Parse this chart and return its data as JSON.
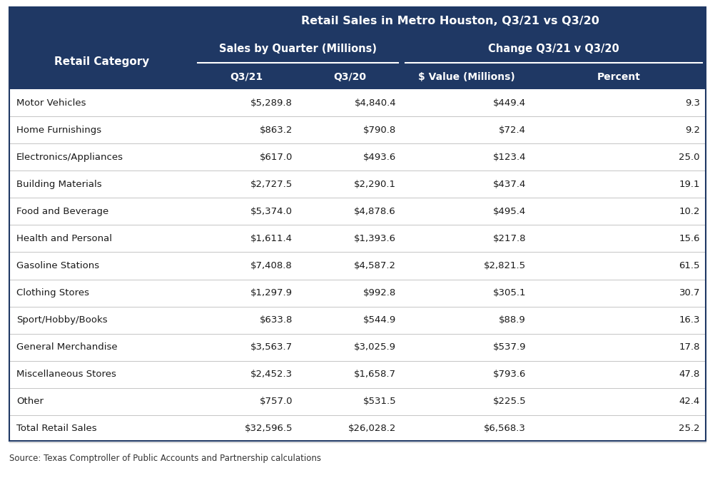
{
  "title": "Retail Sales in Metro Houston, Q3/21 vs Q3/20",
  "header_bg_color": "#1F3864",
  "header_text_color": "#FFFFFF",
  "row_text_color": "#1a1a1a",
  "source_text": "Source: Texas Comptroller of Public Accounts and Partnership calculations",
  "table_bg_color": "#FFFFFF",
  "col_headers": [
    "Q3/21",
    "Q3/20",
    "$ Value (Millions)",
    "Percent"
  ],
  "group_headers": [
    "Sales by Quarter (Millions)",
    "Change Q3/21 v Q3/20"
  ],
  "row_header": "Retail Category",
  "categories": [
    "Motor Vehicles",
    "Home Furnishings",
    "Electronics/Appliances",
    "Building Materials",
    "Food and Beverage",
    "Health and Personal",
    "Gasoline Stations",
    "Clothing Stores",
    "Sport/Hobby/Books",
    "General Merchandise",
    "Miscellaneous Stores",
    "Other",
    "Total Retail Sales"
  ],
  "q321": [
    "$5,289.8",
    "$863.2",
    "$617.0",
    "$2,727.5",
    "$5,374.0",
    "$1,611.4",
    "$7,408.8",
    "$1,297.9",
    "$633.8",
    "$3,563.7",
    "$2,452.3",
    "$757.0",
    "$32,596.5"
  ],
  "q320": [
    "$4,840.4",
    "$790.8",
    "$493.6",
    "$2,290.1",
    "$4,878.6",
    "$1,393.6",
    "$4,587.2",
    "$992.8",
    "$544.9",
    "$3,025.9",
    "$1,658.7",
    "$531.5",
    "$26,028.2"
  ],
  "dollar_change": [
    "$449.4",
    "$72.4",
    "$123.4",
    "$437.4",
    "$495.4",
    "$217.8",
    "$2,821.5",
    "$305.1",
    "$88.9",
    "$537.9",
    "$793.6",
    "$225.5",
    "$6,568.3"
  ],
  "pct_change": [
    "9.3",
    "9.2",
    "25.0",
    "19.1",
    "10.2",
    "15.6",
    "61.5",
    "30.7",
    "16.3",
    "17.8",
    "47.8",
    "42.4",
    "25.2"
  ],
  "fig_width": 10.02,
  "fig_height": 6.7,
  "dpi": 100
}
